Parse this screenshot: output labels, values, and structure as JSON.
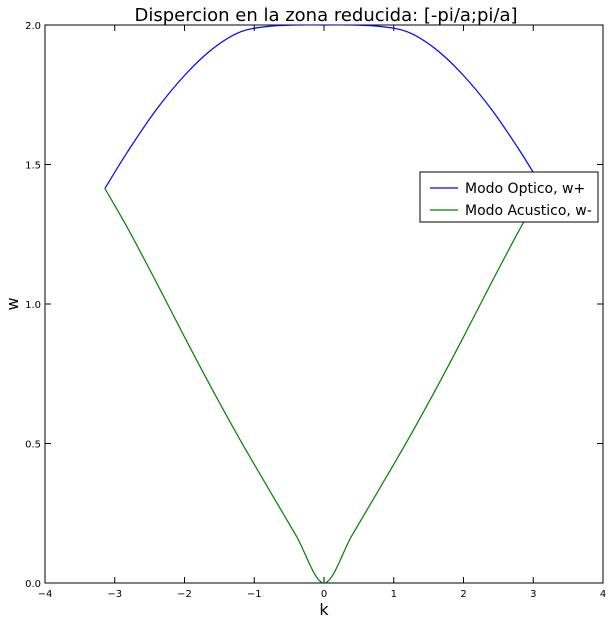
{
  "chart_data": {
    "type": "line",
    "title": "Dispercion en la zona reducida: [-pi/a;pi/a]",
    "xlabel": "k",
    "ylabel": "w",
    "xlim": [
      -4,
      4
    ],
    "ylim": [
      0,
      2.0
    ],
    "xticks": [
      -4,
      -3,
      -2,
      -1,
      0,
      1,
      2,
      3,
      4
    ],
    "xtick_labels": [
      "−4",
      "−3",
      "−2",
      "−1",
      "0",
      "1",
      "2",
      "3",
      "4"
    ],
    "yticks": [
      0,
      0.5,
      1.0,
      1.5,
      2.0
    ],
    "ytick_labels": [
      "0.0",
      "0.5",
      "1.0",
      "1.5",
      "2.0"
    ],
    "grid": false,
    "legend_position": "center-right",
    "series": [
      {
        "name": "Modo Optico, w+",
        "color": "#0000ff",
        "x": [
          -3.1416,
          -2.8,
          -2.4,
          -2.0,
          -1.6,
          -1.2,
          -0.8,
          -0.4,
          0.0,
          0.4,
          0.8,
          1.2,
          1.6,
          2.0,
          2.4,
          2.8,
          3.1416
        ],
        "y": [
          1.414,
          1.552,
          1.698,
          1.819,
          1.914,
          1.975,
          1.995,
          2.0,
          2.0,
          2.0,
          1.995,
          1.975,
          1.914,
          1.819,
          1.698,
          1.552,
          1.414
        ]
      },
      {
        "name": "Modo Acustico, w-",
        "color": "#008000",
        "x": [
          -3.1416,
          -2.8,
          -2.4,
          -2.0,
          -1.6,
          -1.2,
          -0.8,
          -0.4,
          0.0,
          0.4,
          0.8,
          1.2,
          1.6,
          2.0,
          2.4,
          2.8,
          3.1416
        ],
        "y": [
          1.414,
          1.265,
          1.076,
          0.882,
          0.693,
          0.512,
          0.34,
          0.17,
          0.0,
          0.17,
          0.34,
          0.512,
          0.693,
          0.882,
          1.076,
          1.265,
          1.414
        ]
      }
    ]
  }
}
